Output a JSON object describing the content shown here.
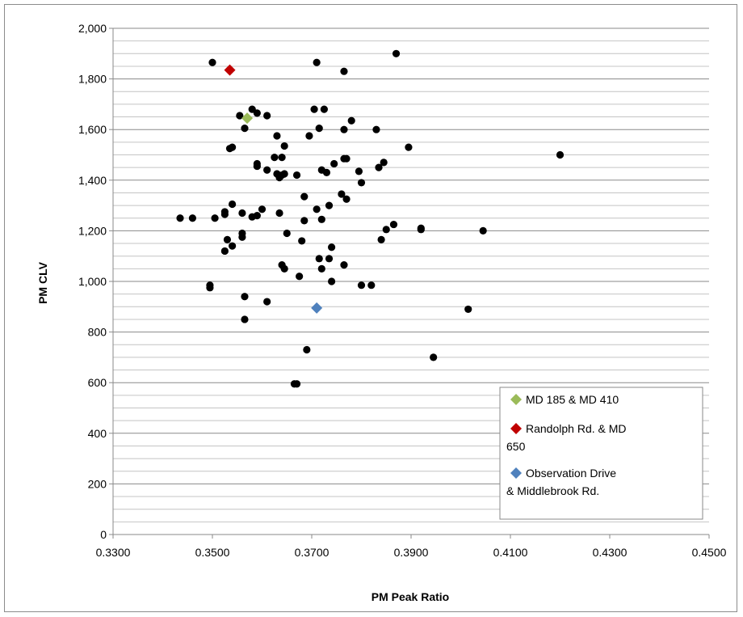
{
  "chart_data": {
    "type": "scatter",
    "xlabel": "PM Peak Ratio",
    "ylabel": "PM CLV",
    "xlim": [
      0.33,
      0.45
    ],
    "ylim": [
      0,
      2000
    ],
    "x_ticks": [
      "0.3300",
      "0.3500",
      "0.3700",
      "0.3900",
      "0.4100",
      "0.4300",
      "0.4500"
    ],
    "y_ticks": [
      "0",
      "200",
      "400",
      "600",
      "800",
      "1,000",
      "1,200",
      "1,400",
      "1,600",
      "1,800",
      "2,000"
    ],
    "grid": "horizontal",
    "legend_position": "bottom-right",
    "colors": {
      "others": "#000000",
      "green": "#9bbb59",
      "red": "#c00000",
      "blue": "#4f81bd"
    },
    "series": [
      {
        "marker": "circle",
        "color": "#000000",
        "points": [
          [
            0.35,
            1865
          ],
          [
            0.371,
            1865
          ],
          [
            0.387,
            1900
          ],
          [
            0.3765,
            1830
          ],
          [
            0.3555,
            1655
          ],
          [
            0.358,
            1680
          ],
          [
            0.359,
            1665
          ],
          [
            0.361,
            1655
          ],
          [
            0.3705,
            1680
          ],
          [
            0.3725,
            1680
          ],
          [
            0.3565,
            1605
          ],
          [
            0.3715,
            1605
          ],
          [
            0.3765,
            1600
          ],
          [
            0.383,
            1600
          ],
          [
            0.3695,
            1575
          ],
          [
            0.363,
            1575
          ],
          [
            0.378,
            1635
          ],
          [
            0.3535,
            1525
          ],
          [
            0.354,
            1530
          ],
          [
            0.3645,
            1535
          ],
          [
            0.3895,
            1530
          ],
          [
            0.3625,
            1490
          ],
          [
            0.364,
            1490
          ],
          [
            0.3765,
            1485
          ],
          [
            0.377,
            1485
          ],
          [
            0.359,
            1465
          ],
          [
            0.359,
            1455
          ],
          [
            0.3745,
            1465
          ],
          [
            0.3835,
            1450
          ],
          [
            0.3845,
            1470
          ],
          [
            0.361,
            1440
          ],
          [
            0.363,
            1425
          ],
          [
            0.3635,
            1410
          ],
          [
            0.364,
            1420
          ],
          [
            0.3645,
            1425
          ],
          [
            0.367,
            1420
          ],
          [
            0.372,
            1440
          ],
          [
            0.373,
            1430
          ],
          [
            0.3795,
            1435
          ],
          [
            0.38,
            1390
          ],
          [
            0.3685,
            1335
          ],
          [
            0.3735,
            1300
          ],
          [
            0.376,
            1345
          ],
          [
            0.377,
            1325
          ],
          [
            0.3435,
            1250
          ],
          [
            0.346,
            1250
          ],
          [
            0.3505,
            1250
          ],
          [
            0.3525,
            1275
          ],
          [
            0.3525,
            1265
          ],
          [
            0.354,
            1305
          ],
          [
            0.356,
            1270
          ],
          [
            0.358,
            1255
          ],
          [
            0.359,
            1260
          ],
          [
            0.36,
            1285
          ],
          [
            0.3635,
            1270
          ],
          [
            0.371,
            1285
          ],
          [
            0.372,
            1245
          ],
          [
            0.3685,
            1240
          ],
          [
            0.3865,
            1225
          ],
          [
            0.353,
            1165
          ],
          [
            0.354,
            1140
          ],
          [
            0.356,
            1190
          ],
          [
            0.356,
            1175
          ],
          [
            0.3525,
            1120
          ],
          [
            0.365,
            1190
          ],
          [
            0.368,
            1160
          ],
          [
            0.374,
            1135
          ],
          [
            0.384,
            1165
          ],
          [
            0.385,
            1205
          ],
          [
            0.392,
            1210
          ],
          [
            0.392,
            1205
          ],
          [
            0.4045,
            1200
          ],
          [
            0.42,
            1500
          ],
          [
            0.364,
            1065
          ],
          [
            0.3645,
            1050
          ],
          [
            0.3715,
            1090
          ],
          [
            0.372,
            1050
          ],
          [
            0.3735,
            1090
          ],
          [
            0.3765,
            1065
          ],
          [
            0.3675,
            1020
          ],
          [
            0.374,
            1000
          ],
          [
            0.38,
            985
          ],
          [
            0.382,
            985
          ],
          [
            0.3495,
            985
          ],
          [
            0.3495,
            975
          ],
          [
            0.3565,
            940
          ],
          [
            0.361,
            920
          ],
          [
            0.3565,
            850
          ],
          [
            0.4015,
            890
          ],
          [
            0.3945,
            700
          ],
          [
            0.369,
            730
          ],
          [
            0.3665,
            595
          ],
          [
            0.367,
            595
          ]
        ]
      },
      {
        "name": "MD 185 & MD 410",
        "marker": "diamond",
        "color": "#9bbb59",
        "points": [
          [
            0.357,
            1645
          ]
        ]
      },
      {
        "name": "Randolph Rd. & MD 650",
        "marker": "diamond",
        "color": "#c00000",
        "points": [
          [
            0.3535,
            1835
          ]
        ]
      },
      {
        "name": "Observation Drive & Middlebrook Rd.",
        "marker": "diamond",
        "color": "#4f81bd",
        "points": [
          [
            0.371,
            895
          ]
        ]
      }
    ],
    "legend": [
      {
        "lines": [
          "MD 185 & MD 410"
        ],
        "color": "#9bbb59"
      },
      {
        "lines": [
          "Randolph Rd. & MD",
          "650"
        ],
        "color": "#c00000"
      },
      {
        "lines": [
          "Observation Drive",
          "& Middlebrook Rd."
        ],
        "color": "#4f81bd"
      }
    ]
  }
}
